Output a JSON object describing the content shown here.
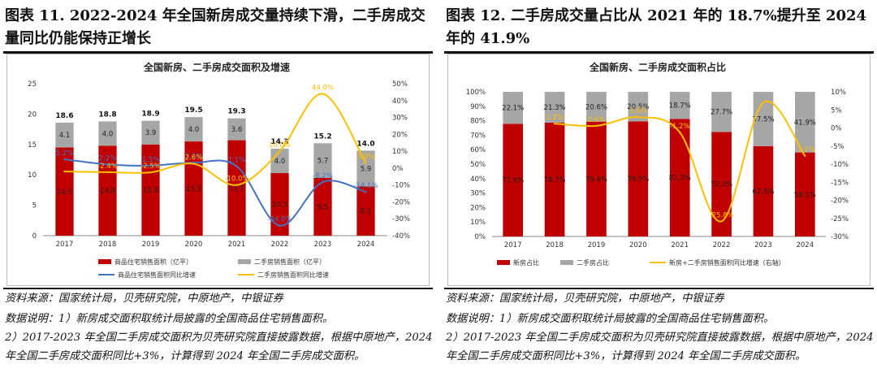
{
  "left": {
    "figure_title": "图表 11. 2022-2024 年全国新房成交量持续下滑，二手房成交量同比仍能保持正增长",
    "source": "资料来源：国家统计局，贝壳研究院，中原地产，中银证券",
    "note": "数据说明：1）新房成交面积取统计局披露的全国商品住宅销售面积。\n2）2017-2023 年全国二手房成交面积为贝壳研究院直接披露数据，根据中原地产，2024 年全国二手房成交面积同比+3%，计算得到 2024 年全国二手房成交面积。"
  },
  "right": {
    "figure_title": "图表 12. 二手房成交量占比从 2021 年的 18.7%提升至 2024 年的 41.9%",
    "source": "资料来源：国家统计局，贝壳研究院，中原地产，中银证券",
    "note": "数据说明：1）新房成交面积取统计局披露的全国商品住宅销售面积。\n2）2017-2023 年全国二手房成交面积为贝壳研究院直接披露数据，根据中原地产，2024 年全国二手房成交面积同比+3%，计算得到 2024 年全国二手房成交面积。"
  },
  "colors": {
    "red": "#c00000",
    "gray": "#a6a6a6",
    "blue": "#4472c4",
    "yellow": "#ffc000"
  },
  "chart_data": [
    {
      "type": "bar",
      "stacked": true,
      "title": "全国新房、二手房成交面积及增速",
      "categories": [
        "2017",
        "2018",
        "2019",
        "2020",
        "2021",
        "2022",
        "2023",
        "2024"
      ],
      "series": [
        {
          "name": "商品住宅销售面积（亿平）",
          "type": "bar",
          "color": "#c00000",
          "values": [
            14.5,
            14.8,
            15.0,
            15.5,
            15.7,
            10.3,
            9.5,
            8.1
          ],
          "labels": [
            "14.5",
            "14.8",
            "15.0",
            "15.5",
            "15.7",
            "10.3",
            "9.5",
            "8.1"
          ]
        },
        {
          "name": "二手房销售面积（亿平）",
          "type": "bar",
          "color": "#a6a6a6",
          "values": [
            4.1,
            4.0,
            3.9,
            4.0,
            3.6,
            4.0,
            5.7,
            5.9
          ],
          "labels": [
            "4.1",
            "4.0",
            "3.9",
            "4.0",
            "3.6",
            "4.0",
            "5.7",
            "5.9"
          ]
        },
        {
          "name": "商品住宅销售面积同比增速",
          "type": "line",
          "axis": "right",
          "color": "#4472c4",
          "values": [
            5.2,
            2.2,
            1.5,
            3.2,
            1.1,
            -34.0,
            -8.2,
            -14.1
          ],
          "labels": [
            "5.2%",
            "2.2%",
            "1.5%",
            "3.2%",
            "1.1%",
            "-34.0%",
            "-8.2%",
            "-14.1%"
          ]
        },
        {
          "name": "二手房销售面积同比增速",
          "type": "line",
          "axis": "right",
          "color": "#ffc000",
          "values": [
            -2.0,
            -2.4,
            -2.5,
            2.6,
            -10.0,
            10.0,
            44.0,
            3.0
          ],
          "labels": [
            "",
            "-2.4%",
            "-2.5%",
            "2.6%",
            "-10.0%",
            "10.0%",
            "44.0%",
            "3.0%"
          ]
        }
      ],
      "totals": [
        "18.6",
        "18.8",
        "18.9",
        "19.5",
        "19.3",
        "14.3",
        "15.2",
        "14.0"
      ],
      "ylim": [
        0,
        25
      ],
      "yticks": [
        "0",
        "5",
        "10",
        "15",
        "20",
        "25"
      ],
      "y2lim": [
        -40,
        50
      ],
      "y2ticks": [
        "-40%",
        "-30%",
        "-20%",
        "-10%",
        "0%",
        "10%",
        "20%",
        "30%",
        "40%",
        "50%"
      ],
      "legend": "bottom"
    },
    {
      "type": "bar",
      "stacked": true,
      "title": "全国新房、二手房成交面积占比",
      "categories": [
        "2017",
        "2018",
        "2019",
        "2020",
        "2021",
        "2022",
        "2023",
        "2024"
      ],
      "series": [
        {
          "name": "新房占比",
          "type": "bar",
          "color": "#c00000",
          "values": [
            77.9,
            78.7,
            79.4,
            79.5,
            81.3,
            72.3,
            62.5,
            58.1
          ],
          "labels": [
            "77.9%",
            "78.7%",
            "79.4%",
            "79.5%",
            "81.3%",
            "72.3%",
            "62.5%",
            "58.1%"
          ]
        },
        {
          "name": "二手房占比",
          "type": "bar",
          "color": "#a6a6a6",
          "values": [
            22.1,
            21.3,
            20.6,
            20.5,
            18.7,
            27.7,
            37.5,
            41.9
          ],
          "labels": [
            "22.1%",
            "21.3%",
            "20.6%",
            "20.5%",
            "18.7%",
            "27.7%",
            "37.5%",
            "41.9%"
          ]
        },
        {
          "name": "新房+二手房销售面积同比增速（右轴）",
          "type": "line",
          "axis": "right",
          "color": "#ffc000",
          "values": [
            null,
            1.2,
            0.6,
            3.0,
            -1.2,
            -25.8,
            7.0,
            -7.7
          ],
          "labels": [
            "",
            "1.2%",
            "0.6%",
            "3.0%",
            "-1.2%",
            "-25.8%",
            "",
            "-7.7%"
          ]
        }
      ],
      "ylim": [
        0,
        100
      ],
      "yticks": [
        "0%",
        "10%",
        "20%",
        "30%",
        "40%",
        "50%",
        "60%",
        "70%",
        "80%",
        "90%",
        "100%"
      ],
      "y2lim": [
        -30,
        10
      ],
      "y2ticks": [
        "-30%",
        "-25%",
        "-20%",
        "-15%",
        "-10%",
        "-5%",
        "0%",
        "5%",
        "10%"
      ],
      "legend": "bottom"
    }
  ]
}
